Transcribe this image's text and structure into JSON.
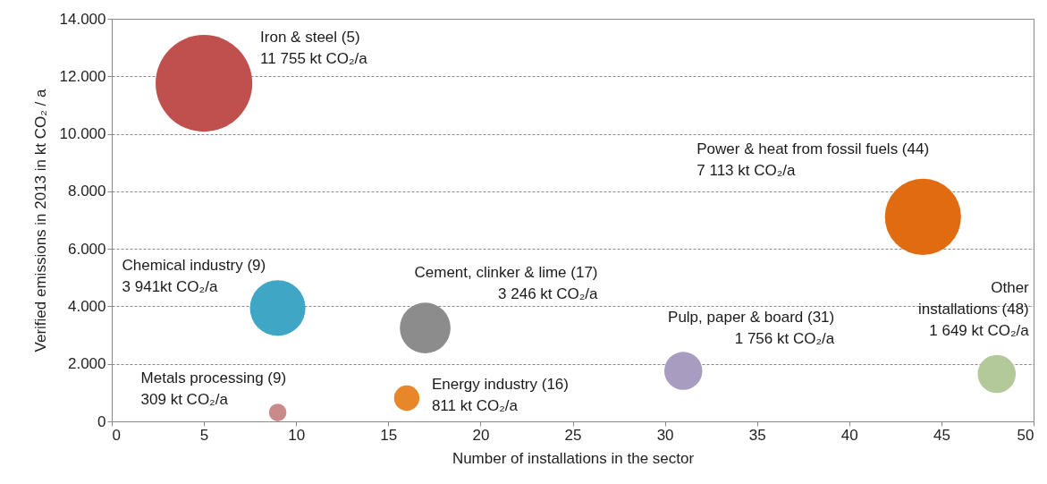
{
  "chart_data": {
    "type": "bubble",
    "xlabel": "Number of installations  in the sector",
    "ylabel": "Verified emissions in 2013 in kt CO₂ / a",
    "x": [
      5,
      9,
      9,
      16,
      17,
      31,
      44,
      48
    ],
    "values": [
      11755,
      3941,
      309,
      811,
      3246,
      1756,
      7113,
      1649
    ],
    "sizes": [
      1,
      0.33,
      0.033,
      0.069,
      0.275,
      0.155,
      0.62,
      0.155
    ],
    "colors": [
      "#c0504d",
      "#3fa6c6",
      "#c98a8a",
      "#e8872a",
      "#8c8c8c",
      "#a89cc0",
      "#e06b10",
      "#b4c99a"
    ],
    "annotations": [
      "Iron & steel (5)\n11 755 kt CO₂/a",
      "Chemical industry (9)\n3 941kt CO₂/a",
      "Metals  processing (9)\n309 kt CO₂/a",
      "Energy industry (16)\n811 kt CO₂/a",
      "Cement,  clinker & lime (17)\n3 246 kt CO₂/a",
      "Pulp,  paper & board (31)\n1 756 kt CO₂/a",
      "Power & heat from fossil fuels (44)\n7 113 kt CO₂/a",
      "Other\ninstallations  (48)\n1 649 kt CO₂/a"
    ],
    "xlim": [
      0,
      50
    ],
    "xticks": [
      0,
      5,
      10,
      15,
      20,
      25,
      30,
      35,
      40,
      45,
      50
    ],
    "ylim": [
      0,
      14000
    ],
    "yticks": [
      0,
      {
        "value": 2000,
        "label": "2.000"
      },
      {
        "value": 4000,
        "label": "4.000"
      },
      {
        "value": 6000,
        "label": "6.000"
      },
      {
        "value": 8000,
        "label": "8.000"
      },
      {
        "value": 10000,
        "label": "10.000"
      },
      {
        "value": 12000,
        "label": "12.000"
      },
      {
        "value": 14000,
        "label": "14.000"
      }
    ],
    "grid": "y"
  }
}
